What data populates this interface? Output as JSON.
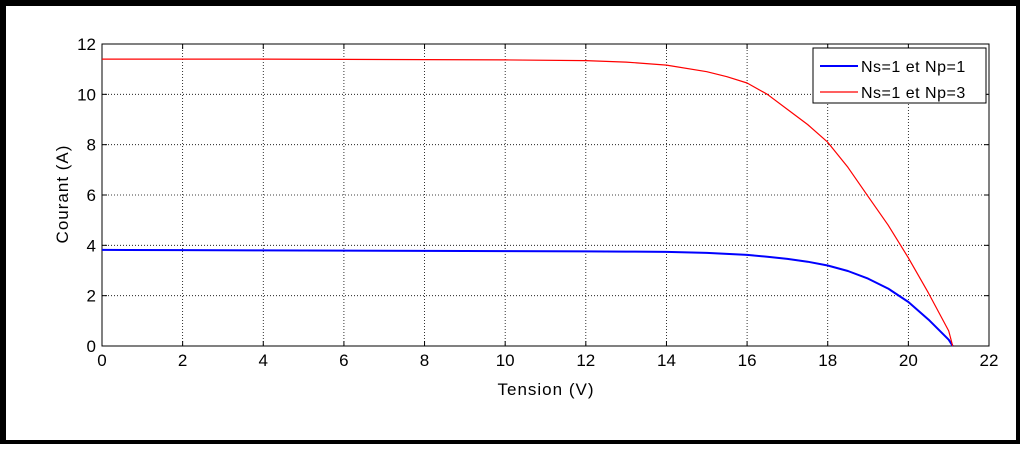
{
  "chart_data": {
    "type": "line",
    "xlabel": "Tension (V)",
    "ylabel": "Courant (A)",
    "xlim": [
      0,
      22
    ],
    "ylim": [
      0,
      12
    ],
    "xticks": [
      "0",
      "2",
      "4",
      "6",
      "8",
      "10",
      "12",
      "14",
      "16",
      "18",
      "20",
      "22"
    ],
    "yticks": [
      "0",
      "2",
      "4",
      "6",
      "8",
      "10",
      "12"
    ],
    "grid": true,
    "legend_position": "top-right",
    "series": [
      {
        "name": "Ns=1 et Np=1",
        "color": "#0000ff",
        "x": [
          0,
          2,
          4,
          6,
          8,
          10,
          12,
          13,
          14,
          15,
          16,
          16.5,
          17,
          17.5,
          18,
          18.5,
          19,
          19.5,
          20,
          20.5,
          21,
          21.1
        ],
        "y": [
          3.82,
          3.81,
          3.8,
          3.79,
          3.78,
          3.77,
          3.76,
          3.75,
          3.74,
          3.7,
          3.62,
          3.55,
          3.46,
          3.35,
          3.2,
          2.98,
          2.68,
          2.28,
          1.75,
          1.05,
          0.25,
          0
        ]
      },
      {
        "name": "Ns=1 et Np=3",
        "color": "#ff0000",
        "x": [
          0,
          2,
          4,
          6,
          8,
          10,
          12,
          13,
          14,
          15,
          15.5,
          16,
          16.5,
          17,
          17.5,
          18,
          18.5,
          19,
          19.5,
          20,
          20.5,
          21,
          21.1
        ],
        "y": [
          11.4,
          11.4,
          11.4,
          11.39,
          11.38,
          11.37,
          11.34,
          11.28,
          11.16,
          10.9,
          10.7,
          10.45,
          10.0,
          9.4,
          8.8,
          8.1,
          7.1,
          5.95,
          4.8,
          3.5,
          2.1,
          0.6,
          0
        ]
      }
    ]
  }
}
